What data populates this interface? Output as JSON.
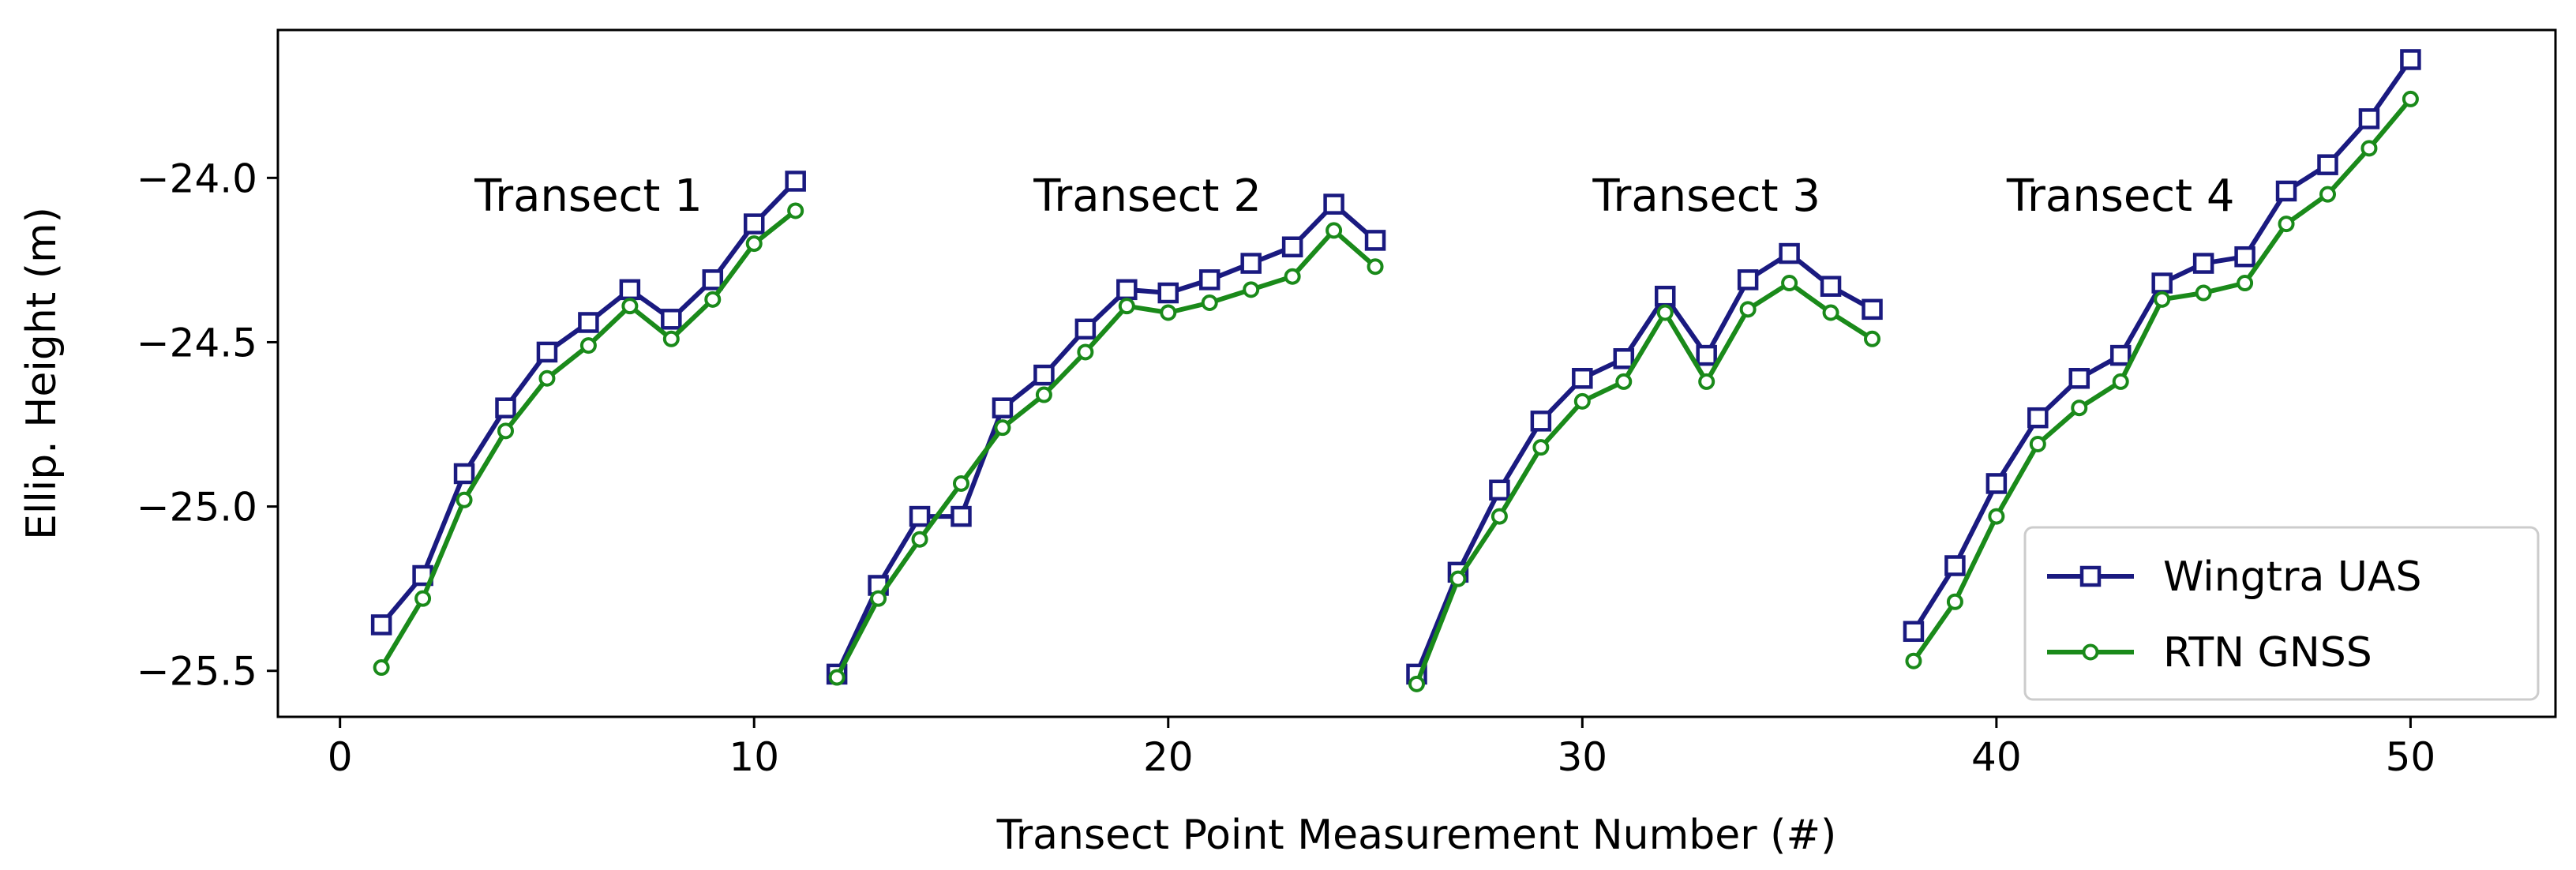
{
  "chart_data": {
    "type": "line",
    "xlabel": "Transect Point Measurement Number (#)",
    "ylabel": "Ellip. Height (m)",
    "xlim": [
      -1.5,
      53.5
    ],
    "ylim": [
      -25.64,
      -23.55
    ],
    "xticks": [
      0,
      10,
      20,
      30,
      40,
      50
    ],
    "yticks": [
      -24.0,
      -24.5,
      -25.0,
      -25.5
    ],
    "xtick_labels": [
      "0",
      "10",
      "20",
      "30",
      "40",
      "50"
    ],
    "ytick_labels": [
      "−24.0",
      "−24.5",
      "−25.0",
      "−25.5"
    ],
    "grid": false,
    "legend_position": "lower-right",
    "annotations": [
      {
        "text": "Transect 1",
        "x": 6,
        "y": -24.1
      },
      {
        "text": "Transect 2",
        "x": 19.5,
        "y": -24.1
      },
      {
        "text": "Transect 3",
        "x": 33,
        "y": -24.1
      },
      {
        "text": "Transect 4",
        "x": 43,
        "y": -24.1
      }
    ],
    "series": [
      {
        "name": "Wingtra UAS",
        "color": "#1a1a80",
        "marker": "square",
        "segments": [
          {
            "x": [
              1,
              2,
              3,
              4,
              5,
              6,
              7,
              8,
              9,
              10,
              11
            ],
            "y": [
              -25.36,
              -25.21,
              -24.9,
              -24.7,
              -24.53,
              -24.44,
              -24.34,
              -24.43,
              -24.31,
              -24.14,
              -24.01
            ]
          },
          {
            "x": [
              12,
              13,
              14,
              15,
              16,
              17,
              18,
              19,
              20,
              21,
              22,
              23,
              24,
              25
            ],
            "y": [
              -25.51,
              -25.24,
              -25.03,
              -25.03,
              -24.7,
              -24.6,
              -24.46,
              -24.34,
              -24.35,
              -24.31,
              -24.26,
              -24.21,
              -24.08,
              -24.19
            ]
          },
          {
            "x": [
              26,
              27,
              28,
              29,
              30,
              31,
              32,
              33,
              34,
              35,
              36,
              37
            ],
            "y": [
              -25.51,
              -25.2,
              -24.95,
              -24.74,
              -24.61,
              -24.55,
              -24.36,
              -24.54,
              -24.31,
              -24.23,
              -24.33,
              -24.4
            ]
          },
          {
            "x": [
              38,
              39,
              40,
              41,
              42,
              43,
              44,
              45,
              46,
              47,
              48,
              49,
              50
            ],
            "y": [
              -25.38,
              -25.18,
              -24.93,
              -24.73,
              -24.61,
              -24.54,
              -24.32,
              -24.26,
              -24.24,
              -24.04,
              -23.96,
              -23.82,
              -23.64
            ]
          }
        ]
      },
      {
        "name": "RTN GNSS",
        "color": "#1a8a1a",
        "marker": "circle",
        "segments": [
          {
            "x": [
              1,
              2,
              3,
              4,
              5,
              6,
              7,
              8,
              9,
              10,
              11
            ],
            "y": [
              -25.49,
              -25.28,
              -24.98,
              -24.77,
              -24.61,
              -24.51,
              -24.39,
              -24.49,
              -24.37,
              -24.2,
              -24.1
            ]
          },
          {
            "x": [
              12,
              13,
              14,
              15,
              16,
              17,
              18,
              19,
              20,
              21,
              22,
              23,
              24,
              25
            ],
            "y": [
              -25.52,
              -25.28,
              -25.1,
              -24.93,
              -24.76,
              -24.66,
              -24.53,
              -24.39,
              -24.41,
              -24.38,
              -24.34,
              -24.3,
              -24.16,
              -24.27
            ]
          },
          {
            "x": [
              26,
              27,
              28,
              29,
              30,
              31,
              32,
              33,
              34,
              35,
              36,
              37
            ],
            "y": [
              -25.54,
              -25.22,
              -25.03,
              -24.82,
              -24.68,
              -24.62,
              -24.41,
              -24.62,
              -24.4,
              -24.32,
              -24.41,
              -24.49
            ]
          },
          {
            "x": [
              38,
              39,
              40,
              41,
              42,
              43,
              44,
              45,
              46,
              47,
              48,
              49,
              50
            ],
            "y": [
              -25.47,
              -25.29,
              -25.03,
              -24.81,
              -24.7,
              -24.62,
              -24.37,
              -24.35,
              -24.32,
              -24.14,
              -24.05,
              -23.91,
              -23.76
            ]
          }
        ]
      }
    ]
  }
}
